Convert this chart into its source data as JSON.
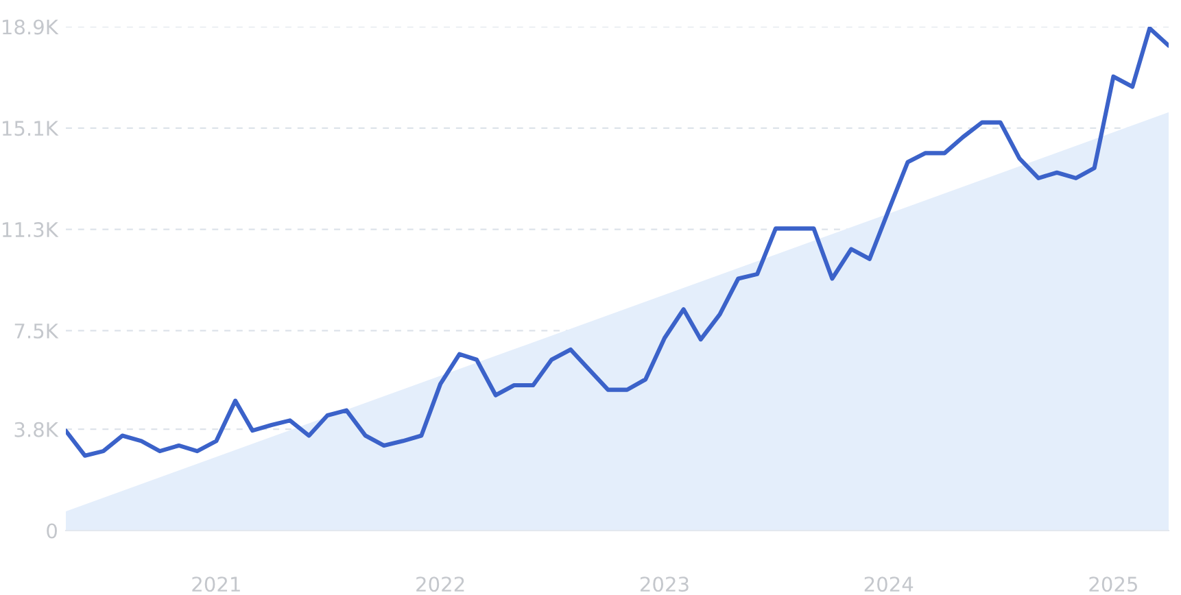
{
  "chart_data": {
    "type": "line",
    "x": [
      "2020-05",
      "2020-06",
      "2020-07",
      "2020-08",
      "2020-09",
      "2020-10",
      "2020-11",
      "2020-12",
      "2021-01",
      "2021-02",
      "2021-03",
      "2021-04",
      "2021-05",
      "2021-06",
      "2021-07",
      "2021-08",
      "2021-09",
      "2021-10",
      "2021-11",
      "2021-12",
      "2022-01",
      "2022-02",
      "2022-03",
      "2022-04",
      "2022-05",
      "2022-06",
      "2022-07",
      "2022-08",
      "2022-09",
      "2022-10",
      "2022-11",
      "2022-12",
      "2023-01",
      "2023-02",
      "2023-03",
      "2023-04",
      "2023-05",
      "2023-06",
      "2023-07",
      "2023-08",
      "2023-09",
      "2023-10",
      "2023-11",
      "2023-12",
      "2024-01",
      "2024-02",
      "2024-03",
      "2024-04",
      "2024-05",
      "2024-06",
      "2024-07",
      "2024-08",
      "2024-09",
      "2024-10",
      "2024-11",
      "2024-12",
      "2025-01",
      "2025-02",
      "2025-03",
      "2025-04"
    ],
    "series": [
      {
        "type": "area",
        "color": "#e4eefb",
        "x": [
          "2020-05",
          "2025-04"
        ],
        "values": [
          720,
          15690
        ]
      },
      {
        "color": "#3b62c9",
        "values": [
          3740,
          2810,
          2980,
          3560,
          3360,
          2980,
          3190,
          2980,
          3360,
          4870,
          3750,
          3960,
          4130,
          3560,
          4320,
          4510,
          3560,
          3190,
          3360,
          3560,
          5500,
          6620,
          6410,
          5080,
          5450,
          5450,
          6410,
          6790,
          6020,
          5280,
          5280,
          5670,
          7220,
          8300,
          7170,
          8110,
          9450,
          9620,
          11330,
          11330,
          11330,
          9450,
          10560,
          10190,
          12020,
          13820,
          14160,
          14160,
          14760,
          15310,
          15310,
          13960,
          13220,
          13430,
          13220,
          13600,
          17030,
          16650,
          18840,
          18190
        ]
      }
    ],
    "xlim": [
      "2020-05",
      "2025-04"
    ],
    "xticks": [
      {
        "value": "2021-01",
        "label": "2021"
      },
      {
        "value": "2022-01",
        "label": "2022"
      },
      {
        "value": "2023-01",
        "label": "2023"
      },
      {
        "value": "2024-01",
        "label": "2024"
      },
      {
        "value": "2025-01",
        "label": "2025"
      }
    ],
    "ylim": [
      0,
      18900
    ],
    "yticks": [
      0,
      {
        "value": 3800,
        "label": "3.8K"
      },
      {
        "value": 7500,
        "label": "7.5K"
      },
      {
        "value": 11300,
        "label": "11.3K"
      },
      {
        "value": 15100,
        "label": "15.1K"
      },
      {
        "value": 18900,
        "label": "18.9K"
      }
    ],
    "grid": "y",
    "marker": "none",
    "line_style": "solid",
    "legend": false
  }
}
